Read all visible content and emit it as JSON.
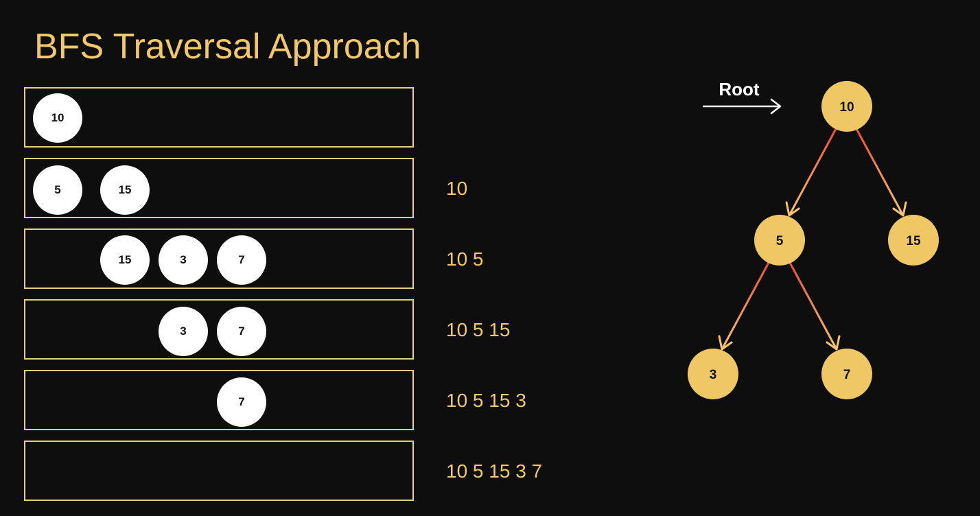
{
  "title": "BFS Traversal Approach",
  "queue_steps": [
    {
      "queue": [
        "10"
      ],
      "output": ""
    },
    {
      "queue": [
        "5",
        "15"
      ],
      "output": "10"
    },
    {
      "queue": [
        "15",
        "3",
        "7"
      ],
      "output": "10 5"
    },
    {
      "queue": [
        "3",
        "7"
      ],
      "output": "10 5 15"
    },
    {
      "queue": [
        "7"
      ],
      "output": "10 5 15 3"
    },
    {
      "queue": [],
      "output": "10 5 15 3 7"
    }
  ],
  "tree": {
    "root_label": "Root",
    "nodes": [
      {
        "id": "n10",
        "value": "10"
      },
      {
        "id": "n5",
        "value": "5"
      },
      {
        "id": "n15",
        "value": "15"
      },
      {
        "id": "n3",
        "value": "3"
      },
      {
        "id": "n7",
        "value": "7"
      }
    ],
    "edges": [
      {
        "from": "n10",
        "to": "n5"
      },
      {
        "from": "n10",
        "to": "n15"
      },
      {
        "from": "n5",
        "to": "n3"
      },
      {
        "from": "n5",
        "to": "n7"
      }
    ]
  },
  "colors": {
    "background": "#0f0e0e",
    "accent_yellow": "#f1c96b",
    "box_border": "#e8cf7c",
    "queue_node": "#ffffff",
    "tree_node": "#efc865",
    "edge_start": "#f0483a",
    "edge_end": "#f6c46b"
  }
}
